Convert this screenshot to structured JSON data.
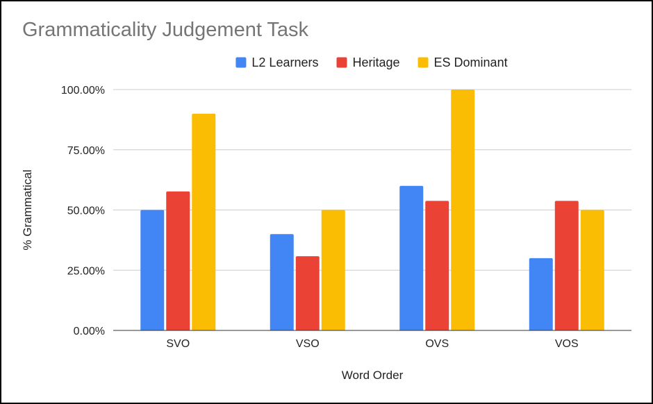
{
  "chart_data": {
    "type": "bar",
    "title": "Grammaticality Judgement Task",
    "xlabel": "Word Order",
    "ylabel": "% Grammatical",
    "categories": [
      "SVO",
      "VSO",
      "OVS",
      "VOS"
    ],
    "series": [
      {
        "name": "L2 Learners",
        "color": "#4285F4",
        "values": [
          50,
          40,
          60,
          30
        ]
      },
      {
        "name": "Heritage",
        "color": "#EA4335",
        "values": [
          57.7,
          30.8,
          53.8,
          53.8
        ]
      },
      {
        "name": "ES Dominant",
        "color": "#FBBC04",
        "values": [
          90,
          50,
          100,
          50
        ]
      }
    ],
    "ylim": [
      0,
      100
    ],
    "yticks": [
      0,
      25,
      50,
      75,
      100
    ],
    "ytick_labels": [
      "0.00%",
      "25.00%",
      "50.00%",
      "75.00%",
      "100.00%"
    ],
    "grid": true,
    "legend_position": "top"
  }
}
